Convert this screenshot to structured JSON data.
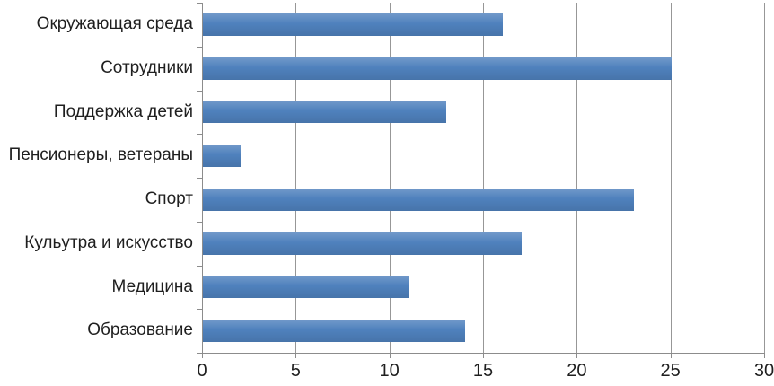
{
  "chart_data": {
    "type": "bar",
    "orientation": "horizontal",
    "title": "",
    "xlabel": "",
    "ylabel": "",
    "categories": [
      "Окружающая среда",
      "Сотрудники",
      "Поддержка детей",
      "Пенсионеры, ветераны",
      "Спорт",
      "Кульутра и искусство",
      "Медицина",
      "Образование"
    ],
    "values": [
      16,
      25,
      13,
      2,
      23,
      17,
      11,
      14
    ],
    "x_ticks": [
      "0",
      "5",
      "10",
      "15",
      "20",
      "25",
      "30"
    ],
    "xlim": [
      0,
      30
    ],
    "grid": "vertical gridlines on",
    "legend": "none",
    "colors": {
      "bar": "#4f81bd",
      "axis": "#8c8c8c",
      "gridline": "#979797",
      "text": "#1f1f1f",
      "background": "#ffffff"
    }
  }
}
